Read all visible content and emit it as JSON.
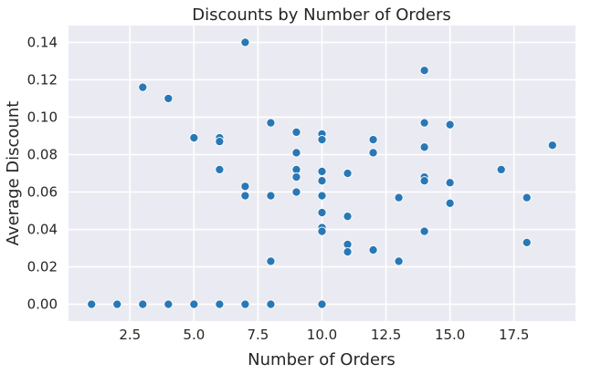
{
  "chart_data": {
    "type": "scatter",
    "title": "Discounts by Number of Orders",
    "xlabel": "Number of Orders",
    "ylabel": "Average Discount",
    "xlim": [
      0.1,
      19.9
    ],
    "ylim": [
      -0.009,
      0.149
    ],
    "xticks": [
      "2.5",
      "5.0",
      "7.5",
      "10.0",
      "12.5",
      "15.0",
      "17.5"
    ],
    "xtick_values": [
      2.5,
      5.0,
      7.5,
      10.0,
      12.5,
      15.0,
      17.5
    ],
    "yticks": [
      "0.00",
      "0.02",
      "0.04",
      "0.06",
      "0.08",
      "0.10",
      "0.12",
      "0.14"
    ],
    "ytick_values": [
      0.0,
      0.02,
      0.04,
      0.06,
      0.08,
      0.1,
      0.12,
      0.14
    ],
    "grid": true,
    "color": "#2878b5",
    "background": "#eaeaf2",
    "points": [
      {
        "x": 1,
        "y": 0.0
      },
      {
        "x": 2,
        "y": 0.0
      },
      {
        "x": 3,
        "y": 0.0
      },
      {
        "x": 4,
        "y": 0.0
      },
      {
        "x": 5,
        "y": 0.0
      },
      {
        "x": 6,
        "y": 0.0
      },
      {
        "x": 7,
        "y": 0.0
      },
      {
        "x": 8,
        "y": 0.0
      },
      {
        "x": 10,
        "y": 0.0
      },
      {
        "x": 3,
        "y": 0.116
      },
      {
        "x": 4,
        "y": 0.11
      },
      {
        "x": 5,
        "y": 0.089
      },
      {
        "x": 6,
        "y": 0.089
      },
      {
        "x": 6,
        "y": 0.087
      },
      {
        "x": 6,
        "y": 0.072
      },
      {
        "x": 7,
        "y": 0.14
      },
      {
        "x": 7,
        "y": 0.063
      },
      {
        "x": 7,
        "y": 0.058
      },
      {
        "x": 8,
        "y": 0.097
      },
      {
        "x": 8,
        "y": 0.058
      },
      {
        "x": 8,
        "y": 0.023
      },
      {
        "x": 9,
        "y": 0.092
      },
      {
        "x": 9,
        "y": 0.081
      },
      {
        "x": 9,
        "y": 0.072
      },
      {
        "x": 9,
        "y": 0.068
      },
      {
        "x": 9,
        "y": 0.06
      },
      {
        "x": 10,
        "y": 0.091
      },
      {
        "x": 10,
        "y": 0.088
      },
      {
        "x": 10,
        "y": 0.071
      },
      {
        "x": 10,
        "y": 0.066
      },
      {
        "x": 10,
        "y": 0.058
      },
      {
        "x": 10,
        "y": 0.049
      },
      {
        "x": 10,
        "y": 0.041
      },
      {
        "x": 10,
        "y": 0.039
      },
      {
        "x": 11,
        "y": 0.07
      },
      {
        "x": 11,
        "y": 0.047
      },
      {
        "x": 11,
        "y": 0.032
      },
      {
        "x": 11,
        "y": 0.028
      },
      {
        "x": 12,
        "y": 0.088
      },
      {
        "x": 12,
        "y": 0.081
      },
      {
        "x": 12,
        "y": 0.029
      },
      {
        "x": 13,
        "y": 0.057
      },
      {
        "x": 13,
        "y": 0.023
      },
      {
        "x": 14,
        "y": 0.125
      },
      {
        "x": 14,
        "y": 0.097
      },
      {
        "x": 14,
        "y": 0.084
      },
      {
        "x": 14,
        "y": 0.068
      },
      {
        "x": 14,
        "y": 0.066
      },
      {
        "x": 14,
        "y": 0.039
      },
      {
        "x": 15,
        "y": 0.096
      },
      {
        "x": 15,
        "y": 0.065
      },
      {
        "x": 15,
        "y": 0.054
      },
      {
        "x": 17,
        "y": 0.072
      },
      {
        "x": 18,
        "y": 0.057
      },
      {
        "x": 18,
        "y": 0.033
      },
      {
        "x": 19,
        "y": 0.085
      }
    ]
  }
}
